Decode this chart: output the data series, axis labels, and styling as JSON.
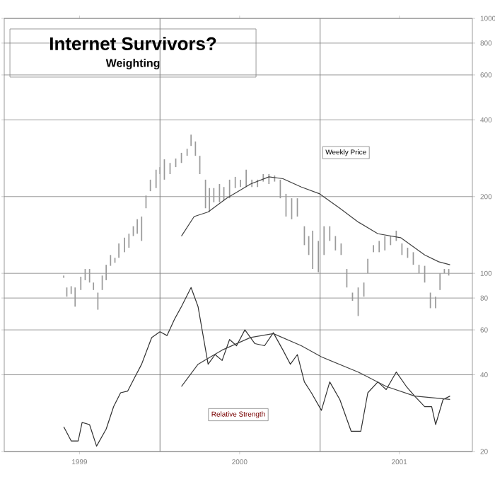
{
  "chart_data": {
    "type": "line",
    "title": "Internet Survivors?",
    "subtitle": "Weighting",
    "log": "y",
    "grid": "y",
    "xlim": [
      "1999-01-10",
      "2001-12-15"
    ],
    "xticks": [
      {
        "value": "1999-07-01",
        "label": "1999"
      },
      {
        "value": "2000-07-01",
        "label": "2000"
      },
      {
        "value": "2001-07-01",
        "label": "2001"
      }
    ],
    "ylim": [
      20,
      1000
    ],
    "yticks": [
      20,
      40,
      60,
      80,
      100,
      200,
      400,
      600,
      800,
      1000
    ],
    "ref_lines": [
      {
        "axis": "x",
        "value": "2000-01-01",
        "color": "#808080"
      },
      {
        "axis": "x",
        "value": "2001-01-01",
        "color": "#808080"
      }
    ],
    "annotations": [
      "Weekly Price",
      "Relative Strength"
    ],
    "series": [
      {
        "type": "bar",
        "color": "#9a9a9a",
        "x": [
          "1999-05-26",
          "1999-06-02",
          "1999-06-12",
          "1999-06-21",
          "1999-07-04",
          "1999-07-14",
          "1999-07-24",
          "1999-08-02",
          "1999-08-12",
          "1999-08-22",
          "1999-08-31",
          "1999-09-10",
          "1999-09-20",
          "1999-09-29",
          "1999-10-12",
          "1999-10-22",
          "1999-11-01",
          "1999-11-10",
          "1999-11-20",
          "1999-11-30",
          "1999-12-10",
          "1999-12-23",
          "2000-01-01",
          "2000-01-11",
          "2000-01-24",
          "2000-02-06",
          "2000-02-19",
          "2000-03-03",
          "2000-03-12",
          "2000-03-22",
          "2000-04-01",
          "2000-04-14",
          "2000-04-23",
          "2000-05-03",
          "2000-05-16",
          "2000-05-26",
          "2000-06-08",
          "2000-06-21",
          "2000-07-03",
          "2000-07-16",
          "2000-07-29",
          "2000-08-11",
          "2000-08-24",
          "2000-09-06",
          "2000-09-19",
          "2000-10-02",
          "2000-10-15",
          "2000-10-28",
          "2000-11-10",
          "2000-11-26",
          "2000-12-06",
          "2000-12-15",
          "2000-12-28",
          "2001-01-10",
          "2001-01-23",
          "2001-02-05",
          "2001-02-18",
          "2001-03-03",
          "2001-03-16",
          "2001-03-29",
          "2001-04-11",
          "2001-04-20",
          "2001-05-03",
          "2001-05-16",
          "2001-05-29",
          "2001-06-11",
          "2001-06-24",
          "2001-07-07",
          "2001-07-20",
          "2001-08-02",
          "2001-08-15",
          "2001-08-28",
          "2001-09-10",
          "2001-09-22",
          "2001-10-02",
          "2001-10-12",
          "2001-10-22"
        ],
        "base": [
          96,
          81,
          83,
          74,
          86,
          94,
          92,
          86,
          72,
          86,
          94,
          107,
          110,
          115,
          121,
          126,
          140,
          143,
          134,
          180,
          210,
          216,
          245,
          233,
          245,
          261,
          271,
          289,
          316,
          289,
          245,
          180,
          174,
          190,
          190,
          193,
          197,
          216,
          218,
          218,
          218,
          218,
          229,
          224,
          229,
          197,
          167,
          163,
          167,
          129,
          118,
          104,
          101,
          118,
          134,
          123,
          118,
          88,
          78,
          68,
          81,
          100,
          121,
          121,
          123,
          129,
          134,
          118,
          115,
          108,
          100,
          92,
          73,
          73,
          86,
          100,
          98
        ],
        "values": [
          2,
          7,
          6,
          14,
          11,
          10,
          12,
          6,
          12,
          12,
          14,
          11,
          5,
          16,
          17,
          17,
          13,
          20,
          33,
          22,
          23,
          39,
          16,
          47,
          26,
          21,
          26,
          19,
          34,
          40,
          44,
          53,
          42,
          26,
          34,
          25,
          36,
          23,
          15,
          37,
          15,
          15,
          16,
          21,
          13,
          36,
          38,
          34,
          30,
          24,
          22,
          43,
          33,
          35,
          19,
          17,
          13,
          16,
          6,
          20,
          11,
          14,
          8,
          13,
          17,
          11,
          13,
          13,
          11,
          13,
          8,
          15,
          11,
          8,
          14,
          4,
          6
        ]
      },
      {
        "color": "#404040",
        "x": [
          "2000-02-19",
          "2000-03-19",
          "2000-04-20",
          "2000-06-01",
          "2000-07-26",
          "2000-09-06",
          "2000-10-08",
          "2000-11-19",
          "2000-12-31",
          "2001-02-15",
          "2001-03-29",
          "2001-05-13",
          "2001-07-04",
          "2001-08-28",
          "2001-09-29",
          "2001-10-25"
        ],
        "values": [
          140,
          167,
          174,
          197,
          224,
          239,
          235,
          218,
          205,
          180,
          159,
          143,
          138,
          118,
          111,
          108
        ]
      },
      {
        "color": "#303030",
        "x": [
          "1999-05-26",
          "1999-06-12",
          "1999-06-28",
          "1999-07-07",
          "1999-07-24",
          "1999-08-09",
          "1999-08-31",
          "1999-09-17",
          "1999-10-03",
          "1999-10-19",
          "1999-11-04",
          "1999-11-20",
          "1999-12-13",
          "2000-01-01",
          "2000-01-17",
          "2000-02-03",
          "2000-02-19",
          "2000-03-12",
          "2000-03-28",
          "2000-04-20",
          "2000-05-06",
          "2000-05-22",
          "2000-06-08",
          "2000-06-24",
          "2000-07-13",
          "2000-08-05",
          "2000-08-27",
          "2000-09-16",
          "2000-10-08",
          "2000-10-25",
          "2000-11-10",
          "2000-11-26",
          "2000-12-12",
          "2001-01-04",
          "2001-01-23",
          "2001-02-15",
          "2001-03-13",
          "2001-04-04",
          "2001-04-20",
          "2001-05-13",
          "2001-06-01",
          "2001-06-24",
          "2001-07-17",
          "2001-08-05",
          "2001-08-28",
          "2001-09-13",
          "2001-09-22",
          "2001-10-09",
          "2001-10-25"
        ],
        "values": [
          25,
          22,
          22,
          26,
          25.5,
          21,
          24.5,
          30,
          34,
          34.5,
          39,
          44,
          56,
          59,
          57,
          66,
          74,
          88,
          74,
          44,
          48,
          45.5,
          55,
          52,
          60,
          53,
          52,
          58.5,
          50,
          44,
          48,
          37.5,
          34,
          29,
          37.5,
          32,
          24,
          24,
          34,
          37.5,
          35,
          41,
          36,
          33,
          30,
          30,
          25.5,
          32,
          33
        ]
      },
      {
        "color": "#404040",
        "x": [
          "2000-02-19",
          "2000-03-28",
          "2000-05-22",
          "2000-07-26",
          "2000-09-16",
          "2000-11-19",
          "2001-01-04",
          "2001-03-29",
          "2001-06-01",
          "2001-08-05",
          "2001-10-25"
        ],
        "values": [
          36,
          44,
          50,
          56,
          58,
          52,
          47,
          41,
          36,
          33,
          32
        ]
      }
    ]
  }
}
